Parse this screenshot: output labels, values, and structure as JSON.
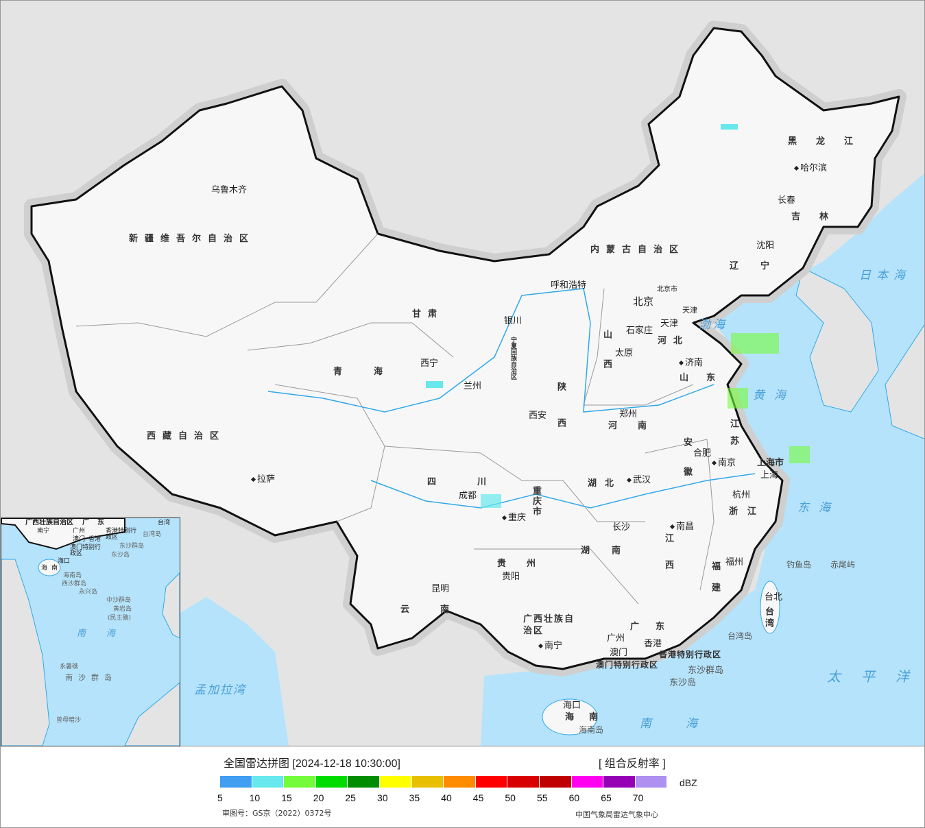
{
  "colors": {
    "sea": "#b5e3fb",
    "foreign_land": "#e4e4e4",
    "china_land": "#f7f7f7",
    "river": "#2fa8e8",
    "border": "#111"
  },
  "provinces": [
    "新疆维吾尔自治区",
    "西藏自治区",
    "青海",
    "甘肃",
    "内蒙古自治区",
    "黑龙江",
    "吉林",
    "辽宁",
    "河北",
    "山西",
    "陕西",
    "四川",
    "云南",
    "贵州",
    "广西壮族自治区",
    "广东",
    "湖南",
    "湖北",
    "河南",
    "山东",
    "江苏",
    "安徽",
    "浙江",
    "江西",
    "福建",
    "海南",
    "台湾",
    "重庆市",
    "宁夏回族自治区",
    "上海市",
    "香港特别行政区",
    "澳门特别行政区",
    "天津",
    "北京市"
  ],
  "cities": [
    "乌鲁木齐",
    "拉萨",
    "西宁",
    "兰州",
    "银川",
    "呼和浩特",
    "哈尔滨",
    "长春",
    "沈阳",
    "北京",
    "天津",
    "石家庄",
    "太原",
    "济南",
    "郑州",
    "西安",
    "成都",
    "重庆",
    "昆明",
    "贵阳",
    "南宁",
    "广州",
    "澳门",
    "香港",
    "长沙",
    "武汉",
    "南昌",
    "合肥",
    "南京",
    "上海",
    "杭州",
    "福州",
    "台北",
    "海口",
    "东沙群岛",
    "东沙岛",
    "台湾岛",
    "钓鱼岛",
    "赤尾屿",
    "海南岛"
  ],
  "seas": [
    "渤海",
    "黄海",
    "东海",
    "南海",
    "日本海",
    "太平洋",
    "孟加拉湾"
  ],
  "inset": {
    "labels": [
      "广西壮族自治区",
      "南宁",
      "广东",
      "广州",
      "澳门",
      "香港",
      "香港特别行政区",
      "澳门特别行政区",
      "台湾",
      "台湾岛",
      "东沙群岛",
      "东沙岛",
      "海口",
      "海南",
      "海南岛",
      "西沙群岛",
      "永兴岛",
      "中沙群岛",
      "黄岩岛",
      "(民主礁)",
      "南海",
      "永暑礁",
      "南沙群岛",
      "曾母暗沙"
    ]
  },
  "legend": {
    "title": "全国雷达拼图 [2024-12-18 10:30:00]",
    "product": "[ 组合反射率 ]",
    "unit": "dBZ",
    "ticks": [
      "5",
      "10",
      "15",
      "20",
      "25",
      "30",
      "35",
      "40",
      "45",
      "50",
      "55",
      "60",
      "65",
      "70"
    ],
    "colors": [
      "#429ef0",
      "#66e8ec",
      "#74fc3c",
      "#00dc00",
      "#008e00",
      "#ffff00",
      "#e8c000",
      "#ff8c00",
      "#ff0000",
      "#d80000",
      "#c00000",
      "#ff00f0",
      "#9600b4",
      "#ae90f0"
    ],
    "approval": "审图号：GS京（2022）0372号",
    "source": "中国气象局雷达气象中心"
  }
}
